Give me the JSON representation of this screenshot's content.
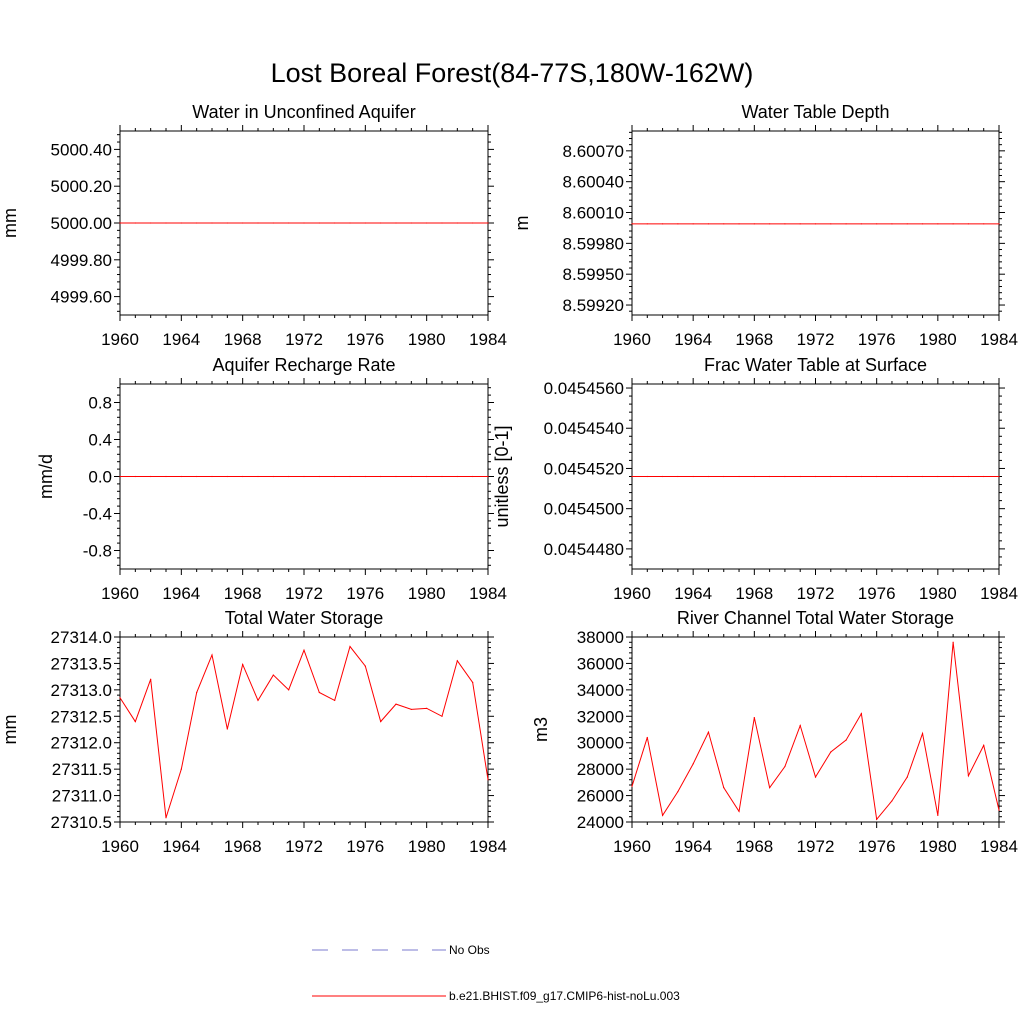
{
  "figure": {
    "title": "Lost Boreal Forest(84-77S,180W-162W)",
    "colors": {
      "model": "#ff0000",
      "obs": "#7b7bcf",
      "frame": "#000000"
    }
  },
  "legend": {
    "location": "bottom-center",
    "items": [
      {
        "label": "No Obs",
        "style": "dashed",
        "color": "#7b7bcf"
      },
      {
        "label": "b.e21.BHIST.f09_g17.CMIP6-hist-noLu.003",
        "style": "solid",
        "color": "#ff0000"
      }
    ]
  },
  "chart_data": [
    {
      "type": "line",
      "title": "Water in Unconfined Aquifer",
      "ylabel": "mm",
      "xlim": [
        1960,
        1984
      ],
      "ylim": [
        4999.5,
        5000.5
      ],
      "x_ticks": [
        "1960",
        "1964",
        "1968",
        "1972",
        "1976",
        "1980",
        "1984"
      ],
      "y_ticks": [
        {
          "v": 4999.6,
          "label": "4999.60"
        },
        {
          "v": 4999.8,
          "label": "4999.80"
        },
        {
          "v": 5000.0,
          "label": "5000.00"
        },
        {
          "v": 5000.2,
          "label": "5000.20"
        },
        {
          "v": 5000.4,
          "label": "5000.40"
        }
      ],
      "series": [
        {
          "name": "b.e21.BHIST.f09_g17.CMIP6-hist-noLu.003",
          "x": [
            1960,
            1961,
            1962,
            1963,
            1964,
            1965,
            1966,
            1967,
            1968,
            1969,
            1970,
            1971,
            1972,
            1973,
            1974,
            1975,
            1976,
            1977,
            1978,
            1979,
            1980,
            1981,
            1982,
            1983,
            1984
          ],
          "y": [
            5000,
            5000,
            5000,
            5000,
            5000,
            5000,
            5000,
            5000,
            5000,
            5000,
            5000,
            5000,
            5000,
            5000,
            5000,
            5000,
            5000,
            5000,
            5000,
            5000,
            5000,
            5000,
            5000,
            5000,
            5000
          ]
        }
      ]
    },
    {
      "type": "line",
      "title": "Water Table Depth",
      "ylabel": "m",
      "xlim": [
        1960,
        1984
      ],
      "ylim": [
        8.599103,
        8.600893
      ],
      "x_ticks": [
        "1960",
        "1964",
        "1968",
        "1972",
        "1976",
        "1980",
        "1984"
      ],
      "y_ticks": [
        {
          "v": 8.5992,
          "label": "8.59920"
        },
        {
          "v": 8.5995,
          "label": "8.59950"
        },
        {
          "v": 8.5998,
          "label": "8.59980"
        },
        {
          "v": 8.6001,
          "label": "8.60010"
        },
        {
          "v": 8.6004,
          "label": "8.60040"
        },
        {
          "v": 8.6007,
          "label": "8.60070"
        }
      ],
      "series": [
        {
          "name": "b.e21.BHIST.f09_g17.CMIP6-hist-noLu.003",
          "x": [
            1960,
            1961,
            1962,
            1963,
            1964,
            1965,
            1966,
            1967,
            1968,
            1969,
            1970,
            1971,
            1972,
            1973,
            1974,
            1975,
            1976,
            1977,
            1978,
            1979,
            1980,
            1981,
            1982,
            1983,
            1984
          ],
          "y": [
            8.59999,
            8.59999,
            8.59999,
            8.59999,
            8.59999,
            8.59999,
            8.59999,
            8.59999,
            8.59999,
            8.59999,
            8.59999,
            8.59999,
            8.59999,
            8.59999,
            8.59999,
            8.59999,
            8.59999,
            8.59999,
            8.59999,
            8.59999,
            8.59999,
            8.59999,
            8.59999,
            8.59999,
            8.59999
          ]
        }
      ]
    },
    {
      "type": "line",
      "title": "Aquifer Recharge Rate",
      "ylabel": "mm/d",
      "xlim": [
        1960,
        1984
      ],
      "ylim": [
        -1.0,
        1.0
      ],
      "x_ticks": [
        "1960",
        "1964",
        "1968",
        "1972",
        "1976",
        "1980",
        "1984"
      ],
      "y_ticks": [
        {
          "v": -0.8,
          "label": "-0.8"
        },
        {
          "v": -0.4,
          "label": "-0.4"
        },
        {
          "v": 0.0,
          "label": "0.0"
        },
        {
          "v": 0.4,
          "label": "0.4"
        },
        {
          "v": 0.8,
          "label": "0.8"
        }
      ],
      "series": [
        {
          "name": "b.e21.BHIST.f09_g17.CMIP6-hist-noLu.003",
          "x": [
            1960,
            1961,
            1962,
            1963,
            1964,
            1965,
            1966,
            1967,
            1968,
            1969,
            1970,
            1971,
            1972,
            1973,
            1974,
            1975,
            1976,
            1977,
            1978,
            1979,
            1980,
            1981,
            1982,
            1983,
            1984
          ],
          "y": [
            0,
            0,
            0,
            0,
            0,
            0,
            0,
            0,
            0,
            0,
            0,
            0,
            0,
            0,
            0,
            0,
            0,
            0,
            0,
            0,
            0,
            0,
            0,
            0,
            0
          ]
        }
      ]
    },
    {
      "type": "line",
      "title": "Frac Water Table at Surface",
      "ylabel": "unitless [0-1]",
      "xlim": [
        1960,
        1984
      ],
      "ylim": [
        0.045447,
        0.0454562
      ],
      "x_ticks": [
        "1960",
        "1964",
        "1968",
        "1972",
        "1976",
        "1980",
        "1984"
      ],
      "y_ticks": [
        {
          "v": 0.045448,
          "label": "0.0454480"
        },
        {
          "v": 0.04545,
          "label": "0.0454500"
        },
        {
          "v": 0.045452,
          "label": "0.0454520"
        },
        {
          "v": 0.045454,
          "label": "0.0454540"
        },
        {
          "v": 0.045456,
          "label": "0.0454560"
        }
      ],
      "series": [
        {
          "name": "b.e21.BHIST.f09_g17.CMIP6-hist-noLu.003",
          "x": [
            1960,
            1961,
            1962,
            1963,
            1964,
            1965,
            1966,
            1967,
            1968,
            1969,
            1970,
            1971,
            1972,
            1973,
            1974,
            1975,
            1976,
            1977,
            1978,
            1979,
            1980,
            1981,
            1982,
            1983,
            1984
          ],
          "y": [
            0.0454516,
            0.0454516,
            0.0454516,
            0.0454516,
            0.0454516,
            0.0454516,
            0.0454516,
            0.0454516,
            0.0454516,
            0.0454516,
            0.0454516,
            0.0454516,
            0.0454516,
            0.0454516,
            0.0454516,
            0.0454516,
            0.0454516,
            0.0454516,
            0.0454516,
            0.0454516,
            0.0454516,
            0.0454516,
            0.0454516,
            0.0454516,
            0.0454516
          ]
        }
      ]
    },
    {
      "type": "line",
      "title": "Total Water Storage",
      "ylabel": "mm",
      "xlim": [
        1960,
        1984
      ],
      "ylim": [
        27310.5,
        27314.0
      ],
      "x_ticks": [
        "1960",
        "1964",
        "1968",
        "1972",
        "1976",
        "1980",
        "1984"
      ],
      "y_ticks": [
        {
          "v": 27310.5,
          "label": "27310.5"
        },
        {
          "v": 27311.0,
          "label": "27311.0"
        },
        {
          "v": 27311.5,
          "label": "27311.5"
        },
        {
          "v": 27312.0,
          "label": "27312.0"
        },
        {
          "v": 27312.5,
          "label": "27312.5"
        },
        {
          "v": 27313.0,
          "label": "27313.0"
        },
        {
          "v": 27313.5,
          "label": "27313.5"
        },
        {
          "v": 27314.0,
          "label": "27314.0"
        }
      ],
      "series": [
        {
          "name": "b.e21.BHIST.f09_g17.CMIP6-hist-noLu.003",
          "x": [
            1960,
            1961,
            1962,
            1963,
            1964,
            1965,
            1966,
            1967,
            1968,
            1969,
            1970,
            1971,
            1972,
            1973,
            1974,
            1975,
            1976,
            1977,
            1978,
            1979,
            1980,
            1981,
            1982,
            1983,
            1984
          ],
          "y": [
            27312.85,
            27312.4,
            27313.2,
            27310.58,
            27311.5,
            27312.95,
            27313.66,
            27312.26,
            27313.48,
            27312.8,
            27313.28,
            27313.0,
            27313.75,
            27312.95,
            27312.8,
            27313.82,
            27313.45,
            27312.4,
            27312.73,
            27312.63,
            27312.65,
            27312.5,
            27313.55,
            27313.14,
            27311.3
          ]
        }
      ]
    },
    {
      "type": "line",
      "title": "River Channel Total Water Storage",
      "ylabel": "m3",
      "xlim": [
        1960,
        1984
      ],
      "ylim": [
        24000,
        38000
      ],
      "x_ticks": [
        "1960",
        "1964",
        "1968",
        "1972",
        "1976",
        "1980",
        "1984"
      ],
      "y_ticks": [
        {
          "v": 24000,
          "label": "24000"
        },
        {
          "v": 26000,
          "label": "26000"
        },
        {
          "v": 28000,
          "label": "28000"
        },
        {
          "v": 30000,
          "label": "30000"
        },
        {
          "v": 32000,
          "label": "32000"
        },
        {
          "v": 34000,
          "label": "34000"
        },
        {
          "v": 36000,
          "label": "36000"
        },
        {
          "v": 38000,
          "label": "38000"
        }
      ],
      "series": [
        {
          "name": "b.e21.BHIST.f09_g17.CMIP6-hist-noLu.003",
          "x": [
            1960,
            1961,
            1962,
            1963,
            1964,
            1965,
            1966,
            1967,
            1968,
            1969,
            1970,
            1971,
            1972,
            1973,
            1974,
            1975,
            1976,
            1977,
            1978,
            1979,
            1980,
            1981,
            1982,
            1983,
            1984
          ],
          "y": [
            26700,
            30400,
            24500,
            26300,
            28400,
            30800,
            26600,
            24800,
            31900,
            26600,
            28200,
            31300,
            27400,
            29300,
            30200,
            32200,
            24200,
            25600,
            27400,
            30700,
            24500,
            37600,
            27500,
            29800,
            24900
          ]
        }
      ]
    }
  ]
}
